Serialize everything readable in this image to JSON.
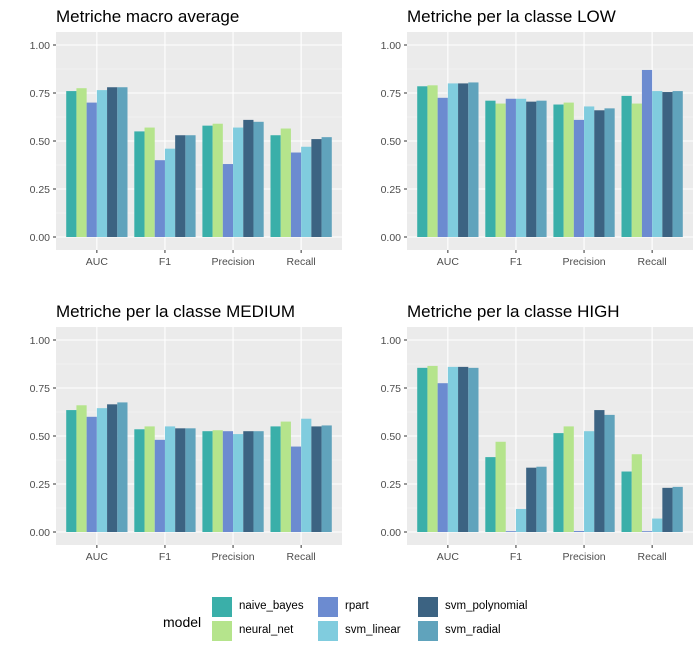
{
  "chart_data": [
    {
      "type": "bar",
      "title": "Metriche macro average",
      "categories": [
        "AUC",
        "F1",
        "Precision",
        "Recall"
      ],
      "ylim": [
        0,
        1
      ],
      "yticks": [
        "0.00",
        "0.25",
        "0.50",
        "0.75",
        "1.00"
      ],
      "series": [
        {
          "name": "naive_bayes",
          "values": [
            0.76,
            0.55,
            0.58,
            0.53
          ]
        },
        {
          "name": "neural_net",
          "values": [
            0.775,
            0.57,
            0.59,
            0.565
          ]
        },
        {
          "name": "rpart",
          "values": [
            0.7,
            0.4,
            0.38,
            0.44
          ]
        },
        {
          "name": "svm_linear",
          "values": [
            0.765,
            0.46,
            0.57,
            0.47
          ]
        },
        {
          "name": "svm_polynomial",
          "values": [
            0.78,
            0.53,
            0.61,
            0.51
          ]
        },
        {
          "name": "svm_radial",
          "values": [
            0.78,
            0.53,
            0.6,
            0.52
          ]
        }
      ]
    },
    {
      "type": "bar",
      "title": "Metriche per la classe LOW",
      "categories": [
        "AUC",
        "F1",
        "Precision",
        "Recall"
      ],
      "ylim": [
        0,
        1
      ],
      "yticks": [
        "0.00",
        "0.25",
        "0.50",
        "0.75",
        "1.00"
      ],
      "series": [
        {
          "name": "naive_bayes",
          "values": [
            0.785,
            0.71,
            0.69,
            0.735
          ]
        },
        {
          "name": "neural_net",
          "values": [
            0.79,
            0.695,
            0.7,
            0.695
          ]
        },
        {
          "name": "rpart",
          "values": [
            0.725,
            0.72,
            0.61,
            0.87
          ]
        },
        {
          "name": "svm_linear",
          "values": [
            0.8,
            0.72,
            0.68,
            0.76
          ]
        },
        {
          "name": "svm_polynomial",
          "values": [
            0.8,
            0.705,
            0.66,
            0.755
          ]
        },
        {
          "name": "svm_radial",
          "values": [
            0.805,
            0.71,
            0.67,
            0.76
          ]
        }
      ]
    },
    {
      "type": "bar",
      "title": "Metriche per la classe MEDIUM",
      "categories": [
        "AUC",
        "F1",
        "Precision",
        "Recall"
      ],
      "ylim": [
        0,
        1
      ],
      "yticks": [
        "0.00",
        "0.25",
        "0.50",
        "0.75",
        "1.00"
      ],
      "series": [
        {
          "name": "naive_bayes",
          "values": [
            0.635,
            0.535,
            0.525,
            0.55
          ]
        },
        {
          "name": "neural_net",
          "values": [
            0.66,
            0.55,
            0.53,
            0.575
          ]
        },
        {
          "name": "rpart",
          "values": [
            0.6,
            0.48,
            0.525,
            0.445
          ]
        },
        {
          "name": "svm_linear",
          "values": [
            0.645,
            0.55,
            0.51,
            0.59
          ]
        },
        {
          "name": "svm_polynomial",
          "values": [
            0.665,
            0.54,
            0.525,
            0.55
          ]
        },
        {
          "name": "svm_radial",
          "values": [
            0.675,
            0.54,
            0.525,
            0.555
          ]
        }
      ]
    },
    {
      "type": "bar",
      "title": "Metriche per la classe HIGH",
      "categories": [
        "AUC",
        "F1",
        "Precision",
        "Recall"
      ],
      "ylim": [
        0,
        1
      ],
      "yticks": [
        "0.00",
        "0.25",
        "0.50",
        "0.75",
        "1.00"
      ],
      "series": [
        {
          "name": "naive_bayes",
          "values": [
            0.855,
            0.39,
            0.515,
            0.315
          ]
        },
        {
          "name": "neural_net",
          "values": [
            0.865,
            0.47,
            0.55,
            0.405
          ]
        },
        {
          "name": "rpart",
          "values": [
            0.775,
            0.0,
            0.005,
            0.0
          ]
        },
        {
          "name": "svm_linear",
          "values": [
            0.86,
            0.12,
            0.525,
            0.07
          ]
        },
        {
          "name": "svm_polynomial",
          "values": [
            0.86,
            0.335,
            0.635,
            0.23
          ]
        },
        {
          "name": "svm_radial",
          "values": [
            0.855,
            0.34,
            0.61,
            0.235
          ]
        }
      ]
    }
  ],
  "legend": {
    "title": "model",
    "items": [
      {
        "name": "naive_bayes",
        "color": "#3AAFA9"
      },
      {
        "name": "neural_net",
        "color": "#B5E48C"
      },
      {
        "name": "rpart",
        "color": "#6C8BD0"
      },
      {
        "name": "svm_linear",
        "color": "#80CCDE"
      },
      {
        "name": "svm_polynomial",
        "color": "#3C6382"
      },
      {
        "name": "svm_radial",
        "color": "#60A3BC"
      }
    ]
  }
}
